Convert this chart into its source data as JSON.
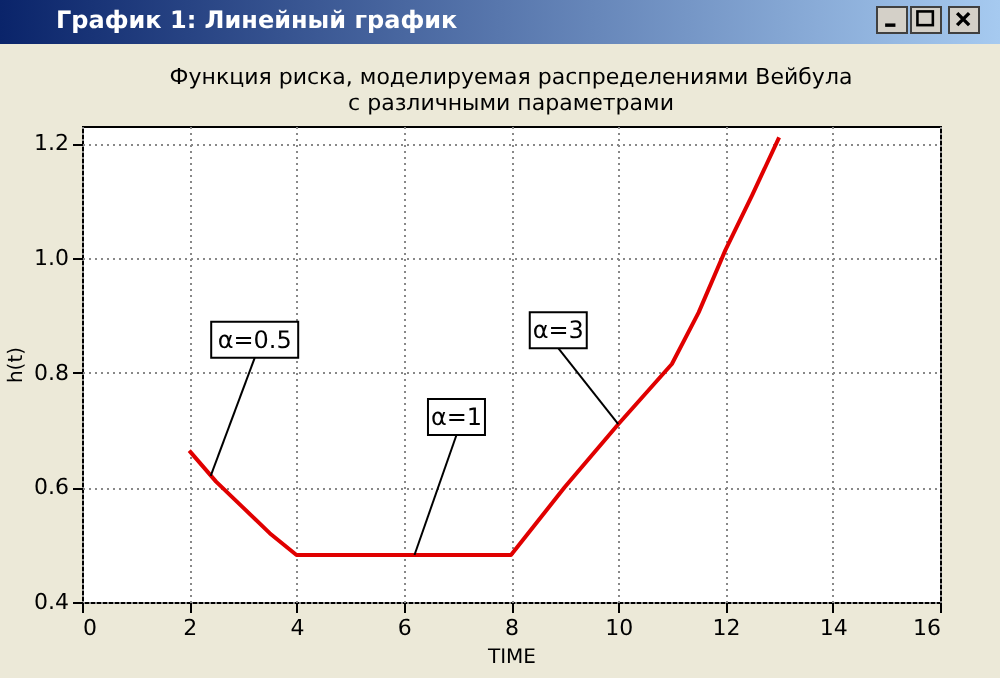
{
  "chart_data": {
    "type": "line",
    "title": "Функция риска, моделируемая распределениями Вейбула\nс различными параметрами",
    "xlabel": "TIME",
    "ylabel": "h(t)",
    "x": [
      2,
      2.5,
      3,
      3.5,
      4,
      6,
      8,
      9,
      10,
      11,
      11.5,
      12,
      12.5,
      13
    ],
    "series": [
      {
        "color": "#e00000",
        "values": [
          0.664,
          0.61,
          0.565,
          0.52,
          0.482,
          0.482,
          0.482,
          0.6,
          0.71,
          0.815,
          0.905,
          1.014,
          1.11,
          1.21
        ]
      }
    ],
    "xlim": [
      0,
      16
    ],
    "xticks": [
      0,
      2,
      4,
      6,
      8,
      10,
      12,
      14,
      16
    ],
    "ylim": [
      0.4,
      1.23
    ],
    "yticks": [
      {
        "value": 0.4,
        "label": "0.4"
      },
      {
        "value": 0.6,
        "label": "0.6"
      },
      {
        "value": 0.8,
        "label": "0.8"
      },
      {
        "value": 1,
        "label": "1.0"
      },
      {
        "value": 1.2,
        "label": "1.2"
      }
    ],
    "grid": true,
    "marker": "none",
    "line_style": "solid",
    "legend": false,
    "annotations": [
      "График 1: Линейный график",
      {
        "text": "α=0.5",
        "x": 2.4,
        "y": 0.62
      },
      {
        "text": "α=1",
        "x": 6.2,
        "y": 0.482
      },
      {
        "text": "α=3",
        "x": 10,
        "y": 0.71
      }
    ]
  }
}
